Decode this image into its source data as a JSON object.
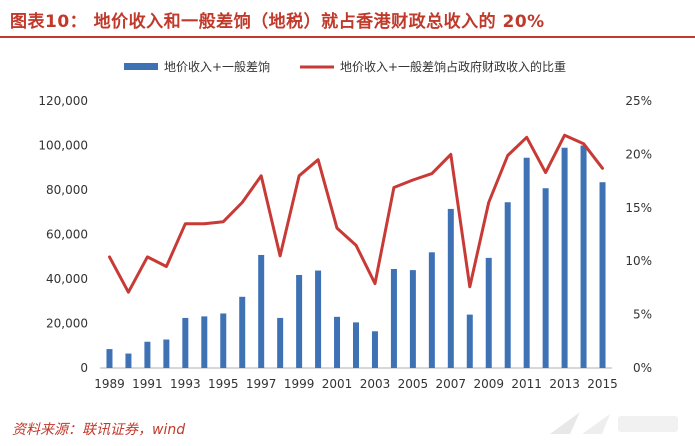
{
  "title": "图表10：  地价收入和一般差饷（地税）就占香港财政总收入的 20%",
  "source": "资料来源：联讯证券，wind",
  "colors": {
    "bar": "#3f72b5",
    "line": "#c83a36",
    "title": "#c0392b",
    "axis": "#b0b0b0"
  },
  "chart_data": {
    "type": "bar",
    "categories": [
      "1989",
      "1990",
      "1991",
      "1992",
      "1993",
      "1994",
      "1995",
      "1996",
      "1997",
      "1998",
      "1999",
      "2000",
      "2001",
      "2002",
      "2003",
      "2004",
      "2005",
      "2006",
      "2007",
      "2008",
      "2009",
      "2010",
      "2011",
      "2012",
      "2013",
      "2014",
      "2015"
    ],
    "x_tick_labels": [
      "1989",
      "1991",
      "1993",
      "1995",
      "1997",
      "1999",
      "2001",
      "2003",
      "2005",
      "2007",
      "2009",
      "2011",
      "2013",
      "2015"
    ],
    "series": [
      {
        "name": "地价收入+一般差饷",
        "type": "bar",
        "axis": "left",
        "values": [
          8500,
          6500,
          11800,
          12800,
          22500,
          23200,
          24500,
          32000,
          50800,
          22500,
          41800,
          43800,
          23000,
          20500,
          16500,
          44500,
          44000,
          52000,
          71500,
          24000,
          49500,
          74500,
          94500,
          80800,
          99000,
          100000,
          83500
        ]
      },
      {
        "name": "地价收入+一般差饷占政府财政收入的比重",
        "type": "line",
        "axis": "right",
        "values": [
          10.4,
          7.1,
          10.4,
          9.5,
          13.5,
          13.5,
          13.7,
          15.5,
          18.0,
          10.5,
          18.0,
          19.5,
          13.1,
          11.5,
          7.9,
          16.9,
          17.6,
          18.2,
          20.0,
          7.6,
          15.5,
          19.9,
          21.6,
          18.3,
          21.8,
          21.0,
          18.7
        ]
      }
    ],
    "y_left": {
      "min": 0,
      "max": 120000,
      "ticks": [
        "0",
        "20,000",
        "40,000",
        "60,000",
        "80,000",
        "100,000",
        "120,000"
      ],
      "values": [
        0,
        20000,
        40000,
        60000,
        80000,
        100000,
        120000
      ]
    },
    "y_right": {
      "min": 0,
      "max": 25,
      "ticks": [
        "0%",
        "5%",
        "10%",
        "15%",
        "20%",
        "25%"
      ],
      "values": [
        0,
        5,
        10,
        15,
        20,
        25
      ]
    },
    "legend_position": "top-center",
    "grid": false
  }
}
